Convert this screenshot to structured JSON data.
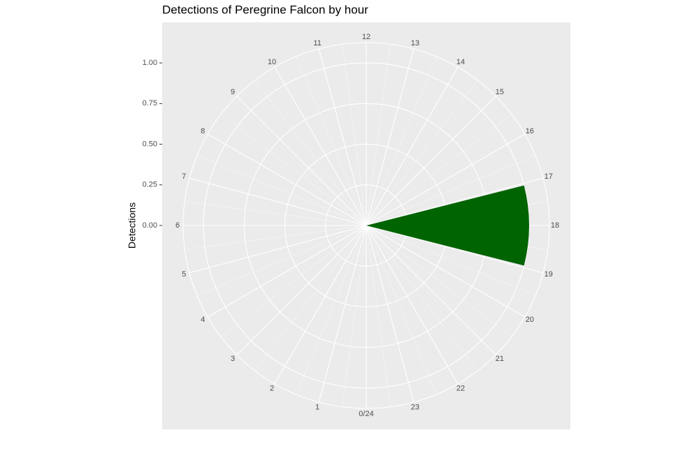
{
  "chart_data": {
    "type": "polar_bar",
    "title": "Detections of Peregrine Falcon by hour",
    "y_label": "Detections",
    "x": [
      18
    ],
    "values": [
      1
    ],
    "color": "#006400",
    "xlim": [
      0,
      24
    ],
    "xticks": [
      {
        "value": 0,
        "label": "0/24"
      },
      1,
      2,
      3,
      4,
      5,
      6,
      7,
      8,
      9,
      10,
      11,
      12,
      13,
      14,
      15,
      16,
      17,
      18,
      19,
      20,
      21,
      22,
      23
    ],
    "ylim": [
      0,
      1.125
    ],
    "yticks": [
      {
        "value": 0,
        "label": "0.00"
      },
      {
        "value": 0.25,
        "label": "0.25"
      },
      {
        "value": 0.5,
        "label": "0.50"
      },
      {
        "value": 0.75,
        "label": "0.75"
      },
      {
        "value": 1,
        "label": "1.00"
      }
    ],
    "grid": true
  }
}
